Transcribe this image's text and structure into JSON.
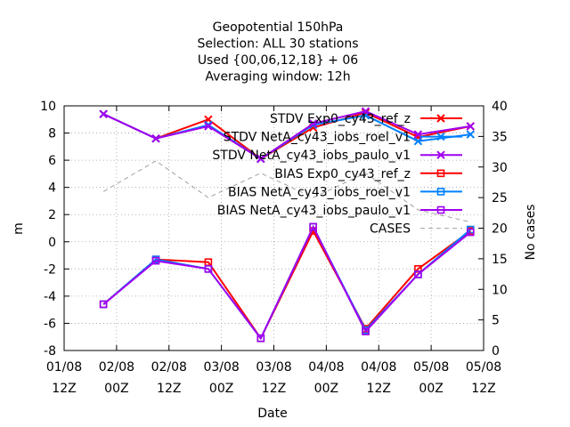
{
  "chart_data": {
    "type": "line",
    "title_lines": [
      "Geopotential 150hPa",
      "Selection: ALL      30 stations",
      "Used {00,06,12,18} + 06",
      "Averaging window: 12h"
    ],
    "xlabel": "Date",
    "ylabel": "m",
    "y2label": "No cases",
    "ylim": [
      -8,
      10
    ],
    "y_ticks": [
      -8,
      -6,
      -4,
      -2,
      0,
      2,
      4,
      6,
      8,
      10
    ],
    "y2lim": [
      0,
      40
    ],
    "y2_ticks": [
      0,
      5,
      10,
      15,
      20,
      25,
      30,
      35,
      40
    ],
    "xlim": [
      0,
      16
    ],
    "x_ticks": [
      {
        "x": 0,
        "date": "01/08",
        "hour": "12Z"
      },
      {
        "x": 2,
        "date": "02/08",
        "hour": "00Z"
      },
      {
        "x": 4,
        "date": "02/08",
        "hour": "12Z"
      },
      {
        "x": 6,
        "date": "03/08",
        "hour": "00Z"
      },
      {
        "x": 8,
        "date": "03/08",
        "hour": "12Z"
      },
      {
        "x": 10,
        "date": "04/08",
        "hour": "00Z"
      },
      {
        "x": 12,
        "date": "04/08",
        "hour": "12Z"
      },
      {
        "x": 14,
        "date": "05/08",
        "hour": "00Z"
      },
      {
        "x": 16,
        "date": "05/08",
        "hour": "12Z"
      }
    ],
    "x": [
      1.5,
      3.5,
      5.5,
      7.5,
      9.5,
      11.5,
      13.5,
      15.5
    ],
    "legend_position": "top-right",
    "grid": true,
    "series": [
      {
        "name": "STDV Exp0_cy43_ref_z",
        "color": "#ff0000",
        "marker": "x",
        "axis": "y1",
        "values": [
          9.4,
          7.6,
          9.0,
          6.1,
          8.4,
          9.5,
          7.7,
          8.5
        ]
      },
      {
        "name": "STDV NetA_cy43_iobs_roel_v1",
        "color": "#0080ff",
        "marker": "x",
        "axis": "y1",
        "values": [
          9.4,
          7.6,
          8.6,
          6.1,
          8.6,
          9.3,
          7.4,
          7.9
        ]
      },
      {
        "name": "STDV NetA_cy43_iobs_paulo_v1",
        "color": "#a000f0",
        "marker": "x",
        "axis": "y1",
        "values": [
          9.4,
          7.6,
          8.5,
          6.1,
          8.7,
          9.6,
          7.9,
          8.5
        ]
      },
      {
        "name": "BIAS Exp0_cy43_ref_z",
        "color": "#ff0000",
        "marker": "square",
        "axis": "y1",
        "values": [
          -4.6,
          -1.3,
          -1.5,
          -7.1,
          0.8,
          -6.4,
          -2.0,
          0.8
        ]
      },
      {
        "name": "BIAS NetA_cy43_iobs_roel_v1",
        "color": "#0080ff",
        "marker": "square",
        "axis": "y1",
        "values": [
          -4.6,
          -1.3,
          -2.0,
          -7.1,
          1.1,
          -6.5,
          -2.4,
          0.9
        ]
      },
      {
        "name": "BIAS NetA_cy43_iobs_paulo_v1",
        "color": "#a000f0",
        "marker": "square",
        "axis": "y1",
        "values": [
          -4.6,
          -1.4,
          -2.0,
          -7.1,
          1.1,
          -6.6,
          -2.4,
          0.7
        ]
      },
      {
        "name": "CASES",
        "color": "#a0a0a0",
        "marker": "none",
        "dashed": true,
        "axis": "y2",
        "values": [
          26,
          31,
          25,
          29,
          25,
          29,
          23,
          21
        ]
      }
    ]
  }
}
